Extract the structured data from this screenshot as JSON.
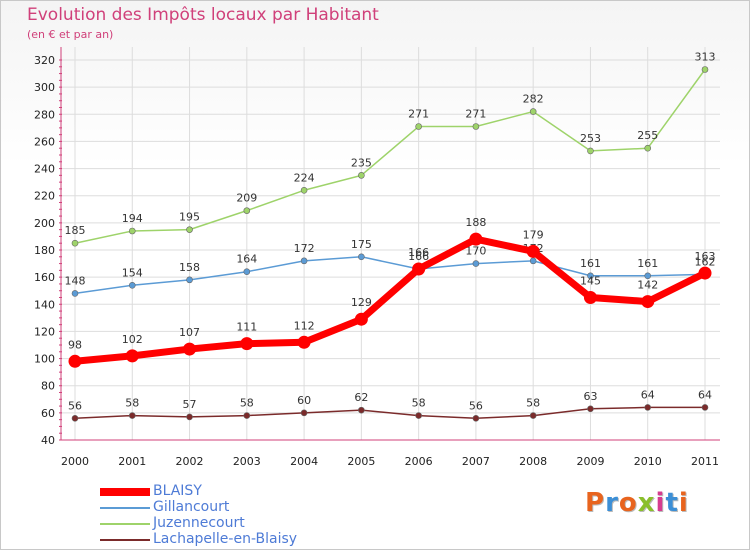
{
  "title": "Evolution des Impôts locaux par Habitant",
  "subtitle": "(en € et par an)",
  "logo": {
    "text": "Proxiti",
    "colors": [
      "#e8641e",
      "#3c8fd6",
      "#e8641e",
      "#8abf2b",
      "#d63c8f",
      "#3c8fd6",
      "#e8641e"
    ]
  },
  "chart_data": {
    "type": "line",
    "title": "Evolution des Impôts locaux par Habitant",
    "subtitle": "(en € et par an)",
    "xlabel": "",
    "ylabel": "",
    "x": [
      "2000",
      "2001",
      "2002",
      "2003",
      "2004",
      "2005",
      "2006",
      "2007",
      "2008",
      "2009",
      "2010",
      "2011"
    ],
    "ylim": [
      40,
      320
    ],
    "yticks": [
      40,
      60,
      80,
      100,
      120,
      140,
      160,
      180,
      200,
      220,
      240,
      260,
      280,
      300,
      320
    ],
    "grid": true,
    "legend_position": "bottom-left",
    "series": [
      {
        "name": "BLAISY",
        "color": "#ff0000",
        "values": [
          98,
          102,
          107,
          111,
          112,
          129,
          166,
          188,
          179,
          145,
          142,
          163
        ]
      },
      {
        "name": "Gillancourt",
        "color": "#5b9bd5",
        "values": [
          148,
          154,
          158,
          164,
          172,
          175,
          166,
          170,
          172,
          161,
          161,
          162
        ]
      },
      {
        "name": "Juzennecourt",
        "color": "#9ed36a",
        "values": [
          185,
          194,
          195,
          209,
          224,
          235,
          271,
          271,
          282,
          253,
          255,
          313
        ]
      },
      {
        "name": "Lachapelle-en-Blaisy",
        "color": "#7b2b2b",
        "values": [
          56,
          58,
          57,
          58,
          60,
          62,
          58,
          56,
          58,
          63,
          64,
          64
        ]
      }
    ]
  }
}
